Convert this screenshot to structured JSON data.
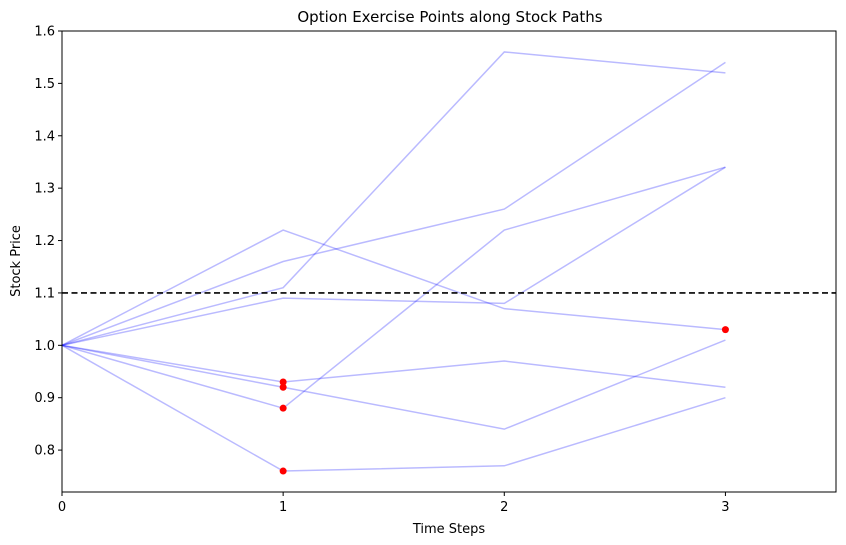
{
  "chart_data": {
    "type": "line",
    "title": "Option Exercise Points along Stock Paths",
    "xlabel": "Time Steps",
    "ylabel": "Stock Price",
    "xlim": [
      0,
      3.5
    ],
    "ylim": [
      0.72,
      1.6
    ],
    "xticks": [
      0,
      1,
      2,
      3
    ],
    "yticks": [
      0.8,
      0.9,
      1.0,
      1.1,
      1.2,
      1.3,
      1.4,
      1.5,
      1.6
    ],
    "ytick_labels": [
      "0.8",
      "0.9",
      "1.0",
      "1.1",
      "1.2",
      "1.3",
      "1.4",
      "1.5",
      "1.6"
    ],
    "grid": false,
    "series": [
      {
        "x": [
          0,
          1,
          2,
          3
        ],
        "values": [
          1.0,
          1.11,
          1.56,
          1.52
        ]
      },
      {
        "x": [
          0,
          1,
          2,
          3
        ],
        "values": [
          1.0,
          1.16,
          1.26,
          1.54
        ]
      },
      {
        "x": [
          0,
          1,
          2,
          3
        ],
        "values": [
          1.0,
          1.09,
          1.08,
          1.34
        ]
      },
      {
        "x": [
          0,
          1,
          2,
          3
        ],
        "values": [
          1.0,
          0.88,
          1.22,
          1.34
        ]
      },
      {
        "x": [
          0,
          1,
          2,
          3
        ],
        "values": [
          1.0,
          1.22,
          1.07,
          1.03
        ]
      },
      {
        "x": [
          0,
          1,
          2,
          3
        ],
        "values": [
          1.0,
          0.93,
          0.97,
          0.92
        ]
      },
      {
        "x": [
          0,
          1,
          2,
          3
        ],
        "values": [
          1.0,
          0.92,
          0.84,
          1.01
        ]
      },
      {
        "x": [
          0,
          1,
          2,
          3
        ],
        "values": [
          1.0,
          0.76,
          0.77,
          0.9
        ]
      }
    ],
    "exercise_points": [
      {
        "x": 1,
        "y": 0.93
      },
      {
        "x": 1,
        "y": 0.92
      },
      {
        "x": 1,
        "y": 0.88
      },
      {
        "x": 1,
        "y": 0.76
      },
      {
        "x": 3,
        "y": 1.03
      }
    ],
    "strike_line": {
      "y": 1.1
    },
    "colors": {
      "paths": "#0000ff",
      "exercise": "#ff0000",
      "strike": "#000000"
    }
  }
}
